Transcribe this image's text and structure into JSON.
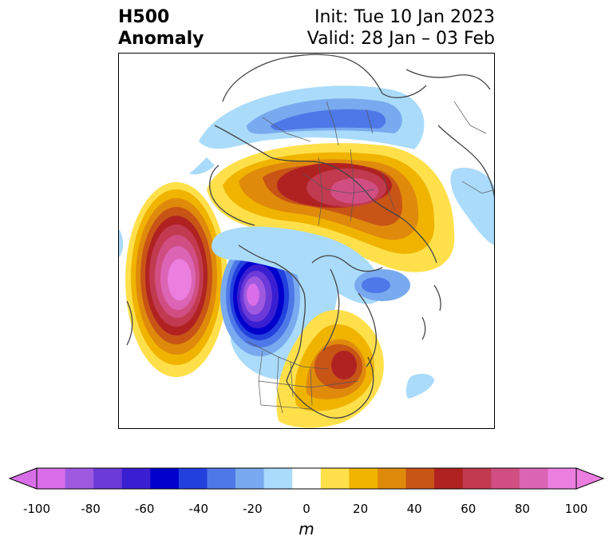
{
  "header": {
    "title_line1": "H500",
    "title_line2": "Anomaly",
    "init": "Init: Tue 10 Jan 2023",
    "valid": "Valid: 28 Jan – 03 Feb"
  },
  "colorbar": {
    "units": "m",
    "tick_labels": [
      "-100",
      "-80",
      "-60",
      "-40",
      "-20",
      "0",
      "20",
      "40",
      "60",
      "80",
      "100"
    ],
    "colors": [
      "#d86ee8",
      "#9e59e0",
      "#6b3ad8",
      "#3a1fd2",
      "#0000cc",
      "#2240dd",
      "#4e78e8",
      "#79aaef",
      "#aadbfa",
      "#ffffff",
      "#ffe04a",
      "#f0b400",
      "#e08a0c",
      "#c85416",
      "#b02222",
      "#c23a50",
      "#d04e82",
      "#dc64b4",
      "#ec7ee0"
    ],
    "extend_low_color": "#d86ee8",
    "extend_high_color": "#ec7ee0"
  },
  "map": {
    "projection": "north polar stereographic",
    "variable": "500 hPa geopotential height anomaly"
  }
}
